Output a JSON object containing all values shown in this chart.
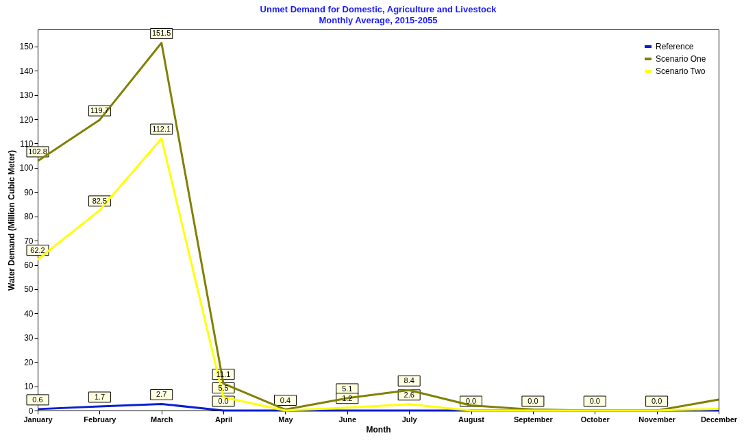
{
  "chart_data": {
    "type": "line",
    "title": "Unmet Demand for Domestic, Agriculture and Livestock",
    "subtitle": "Monthly Average, 2015-2055",
    "xlabel": "Month",
    "ylabel": "Water Demand (Million Cubic Meter)",
    "categories": [
      "January",
      "February",
      "March",
      "April",
      "May",
      "June",
      "July",
      "August",
      "September",
      "October",
      "November",
      "December"
    ],
    "series": [
      {
        "name": "Reference",
        "color": "#0a1fd0",
        "values": [
          0.6,
          1.7,
          2.7,
          0.0,
          0.0,
          0.0,
          0.0,
          0.0,
          0.0,
          0.0,
          0.0,
          0.0
        ],
        "value_labels": [
          "0.6",
          "1.7",
          "2.7",
          "0.0",
          null,
          null,
          null,
          null,
          null,
          null,
          null,
          null
        ]
      },
      {
        "name": "Scenario One",
        "color": "#808000",
        "values": [
          102.8,
          119.7,
          151.5,
          11.1,
          0.4,
          5.1,
          8.4,
          2.1,
          0.4,
          0.0,
          0.0,
          4.5
        ],
        "value_labels": [
          "102.8",
          "119.7",
          "151.5",
          "11.1",
          "0.4",
          "5.1",
          "8.4",
          null,
          null,
          null,
          null,
          null
        ]
      },
      {
        "name": "Scenario Two",
        "color": "#ffff00",
        "values": [
          62.2,
          82.5,
          112.1,
          5.5,
          0.0,
          1.2,
          2.6,
          0.0,
          0.0,
          0.0,
          0.0,
          0.7
        ],
        "value_labels": [
          "62.2",
          "82.5",
          "112.1",
          "5.5",
          null,
          "1.2",
          "2.6",
          "0.0",
          "0.0",
          "0.0",
          "0.0",
          null
        ]
      }
    ],
    "ylim": [
      0,
      157
    ],
    "yticks": [
      0,
      10,
      20,
      30,
      40,
      50,
      60,
      70,
      80,
      90,
      100,
      110,
      120,
      130,
      140,
      150
    ],
    "grid": false,
    "legend": "top right",
    "marker": "none",
    "line_style": "solid"
  }
}
